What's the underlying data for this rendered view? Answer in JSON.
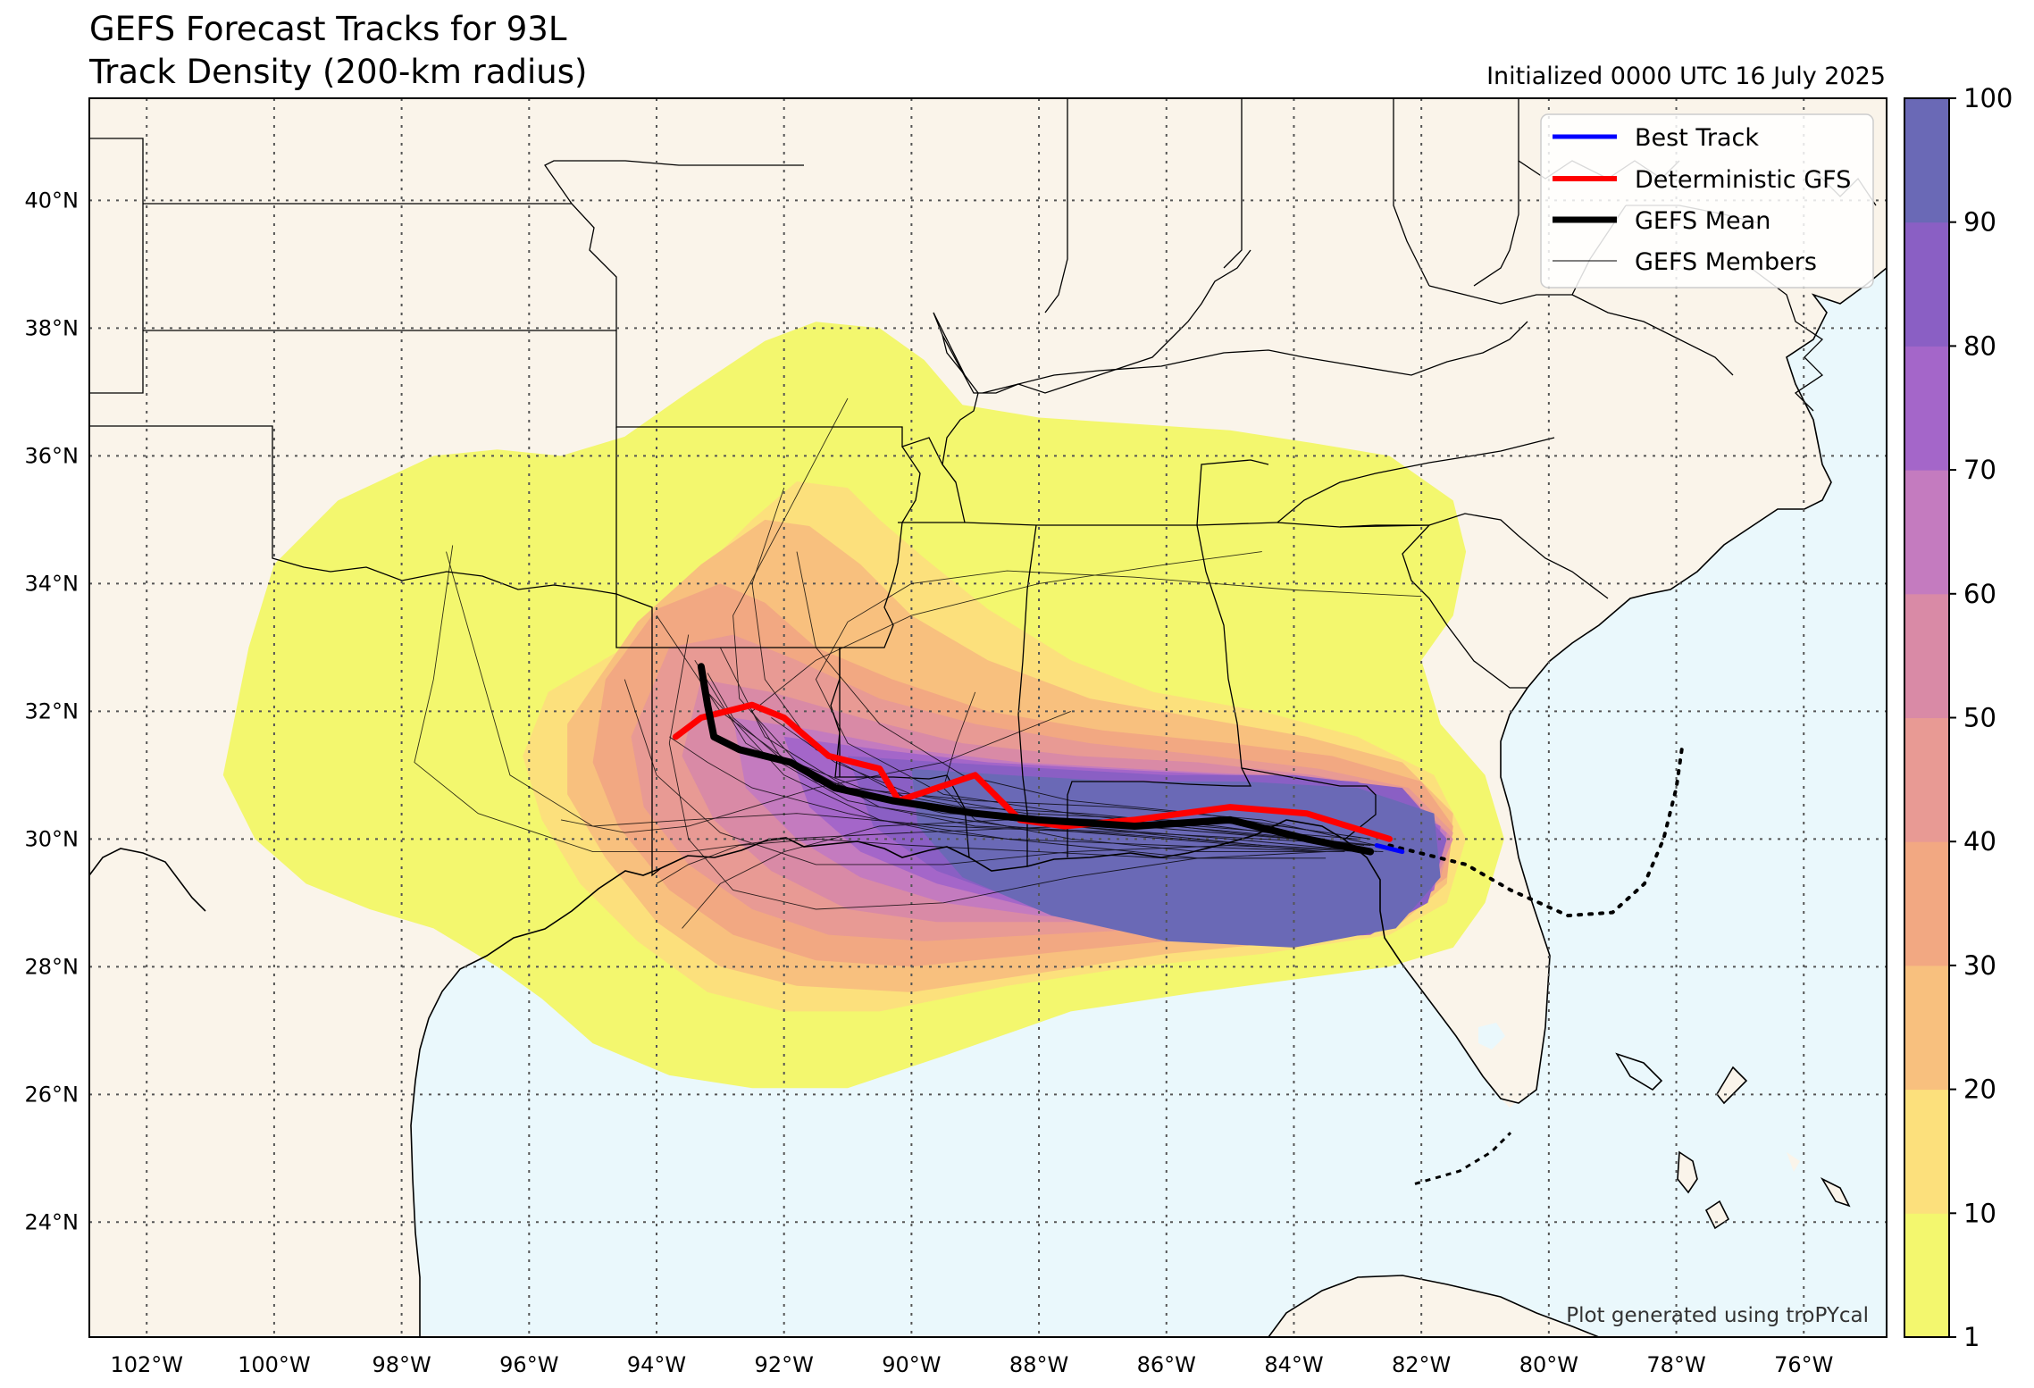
{
  "title_line1": "GEFS Forecast Tracks for 93L",
  "title_line2": "Track Density (200-km radius)",
  "initialized": "Initialized 0000 UTC 16 July 2025",
  "credit": "Plot generated using troPYcal",
  "map": {
    "lon_range": [
      -102.9,
      -74.7
    ],
    "lat_range": [
      22.2,
      41.6
    ],
    "lon_ticks": [
      "102°W",
      "100°W",
      "98°W",
      "96°W",
      "94°W",
      "92°W",
      "90°W",
      "88°W",
      "86°W",
      "84°W",
      "82°W",
      "80°W",
      "78°W",
      "76°W"
    ],
    "lat_ticks": [
      "24°N",
      "26°N",
      "28°N",
      "30°N",
      "32°N",
      "34°N",
      "36°N",
      "38°N",
      "40°N"
    ],
    "land_color": "#faf4ea",
    "ocean_color": "#eaf8fc"
  },
  "legend": [
    {
      "label": "Best Track",
      "color": "#0000ff"
    },
    {
      "label": "Deterministic GFS",
      "color": "#ff0000"
    },
    {
      "label": "GEFS Mean",
      "color": "#000000"
    },
    {
      "label": "GEFS Members",
      "color": "#000000"
    }
  ],
  "colorbar": {
    "ticks": [
      "1",
      "10",
      "20",
      "30",
      "40",
      "50",
      "60",
      "70",
      "80",
      "90",
      "100"
    ],
    "colors": [
      "#f3f76e",
      "#fce07c",
      "#f8c07e",
      "#f2a882",
      "#e89a94",
      "#d98aa6",
      "#c47bbf",
      "#a466c9",
      "#8a5fc4",
      "#6a69b6"
    ]
  },
  "chart_data": {
    "type": "map",
    "density_levels": [
      1,
      10,
      20,
      30,
      40,
      50,
      60,
      70,
      80,
      90,
      100
    ],
    "tracks": {
      "best_track": [
        [
          -82.7,
          29.9
        ],
        [
          -82.3,
          29.8
        ]
      ],
      "deterministic_gfs": [
        [
          -93.7,
          31.6
        ],
        [
          -93.3,
          31.9
        ],
        [
          -92.5,
          32.1
        ],
        [
          -92.0,
          31.9
        ],
        [
          -91.3,
          31.3
        ],
        [
          -90.5,
          31.1
        ],
        [
          -90.2,
          30.6
        ],
        [
          -89.0,
          31.0
        ],
        [
          -88.3,
          30.3
        ],
        [
          -87.6,
          30.2
        ],
        [
          -86.5,
          30.3
        ],
        [
          -85.0,
          30.5
        ],
        [
          -83.8,
          30.4
        ],
        [
          -82.5,
          30.0
        ]
      ],
      "gefs_mean": [
        [
          -93.3,
          32.7
        ],
        [
          -93.2,
          32.1
        ],
        [
          -93.1,
          31.6
        ],
        [
          -92.7,
          31.4
        ],
        [
          -91.9,
          31.2
        ],
        [
          -91.2,
          30.8
        ],
        [
          -90.3,
          30.6
        ],
        [
          -89.0,
          30.4
        ],
        [
          -88.0,
          30.3
        ],
        [
          -86.5,
          30.2
        ],
        [
          -85.0,
          30.3
        ],
        [
          -83.8,
          30.0
        ],
        [
          -82.8,
          29.8
        ]
      ],
      "best_track_dotted": [
        [
          -82.5,
          29.9
        ],
        [
          -81.3,
          29.6
        ],
        [
          -80.6,
          29.2
        ],
        [
          -79.7,
          28.8
        ],
        [
          -79.0,
          28.85
        ],
        [
          -78.5,
          29.3
        ],
        [
          -78.2,
          30.0
        ],
        [
          -78.0,
          30.8
        ],
        [
          -77.9,
          31.5
        ]
      ],
      "forecast_dashed": [
        [
          -82.1,
          24.6
        ],
        [
          -81.4,
          24.8
        ],
        [
          -80.9,
          25.1
        ],
        [
          -80.6,
          25.4
        ]
      ]
    }
  }
}
